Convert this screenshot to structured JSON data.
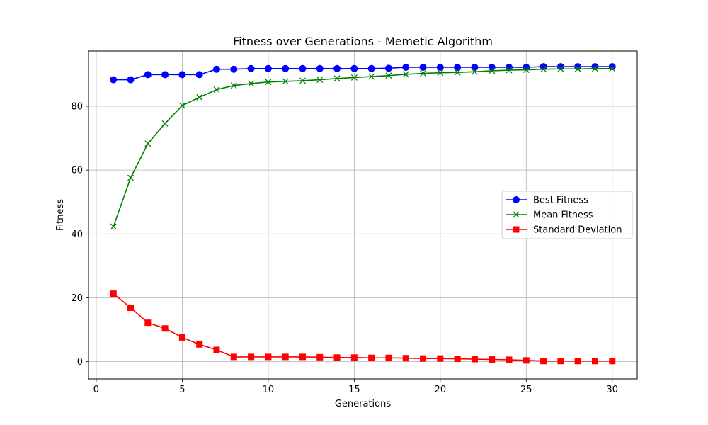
{
  "chart_data": {
    "type": "line",
    "title": "Fitness over Generations - Memetic Algorithm",
    "xlabel": "Generations",
    "ylabel": "Fitness",
    "xlim": [
      -0.45,
      31.45
    ],
    "ylim": [
      -5.4,
      97.3
    ],
    "xticks": [
      0,
      5,
      10,
      15,
      20,
      25,
      30
    ],
    "yticks": [
      0,
      20,
      40,
      60,
      80
    ],
    "grid": true,
    "legend_position": "center-right",
    "x": [
      1,
      2,
      3,
      4,
      5,
      6,
      7,
      8,
      9,
      10,
      11,
      12,
      13,
      14,
      15,
      16,
      17,
      18,
      19,
      20,
      21,
      22,
      23,
      24,
      25,
      26,
      27,
      28,
      29,
      30
    ],
    "series": [
      {
        "name": "Best Fitness",
        "color": "#0000ff",
        "marker": "circle",
        "values": [
          88.3,
          88.3,
          89.9,
          89.9,
          89.9,
          89.9,
          91.6,
          91.6,
          91.8,
          91.8,
          91.8,
          91.8,
          91.8,
          91.8,
          91.8,
          91.8,
          91.9,
          92.2,
          92.2,
          92.2,
          92.2,
          92.2,
          92.2,
          92.2,
          92.2,
          92.4,
          92.4,
          92.4,
          92.4,
          92.4
        ]
      },
      {
        "name": "Mean Fitness",
        "color": "#008000",
        "marker": "x",
        "values": [
          42.3,
          57.6,
          68.3,
          74.6,
          80.2,
          82.8,
          85.2,
          86.5,
          87.1,
          87.6,
          87.8,
          88.0,
          88.3,
          88.7,
          89.0,
          89.3,
          89.6,
          90.0,
          90.3,
          90.5,
          90.6,
          90.8,
          91.1,
          91.3,
          91.4,
          91.6,
          91.7,
          91.7,
          91.8,
          91.8
        ]
      },
      {
        "name": "Standard Deviation",
        "color": "#ff0000",
        "marker": "square",
        "values": [
          21.3,
          16.9,
          12.2,
          10.4,
          7.6,
          5.4,
          3.7,
          1.5,
          1.5,
          1.5,
          1.5,
          1.5,
          1.4,
          1.3,
          1.3,
          1.2,
          1.2,
          1.1,
          1.0,
          1.0,
          0.9,
          0.8,
          0.7,
          0.6,
          0.4,
          0.2,
          0.2,
          0.2,
          0.2,
          0.2
        ]
      }
    ]
  }
}
